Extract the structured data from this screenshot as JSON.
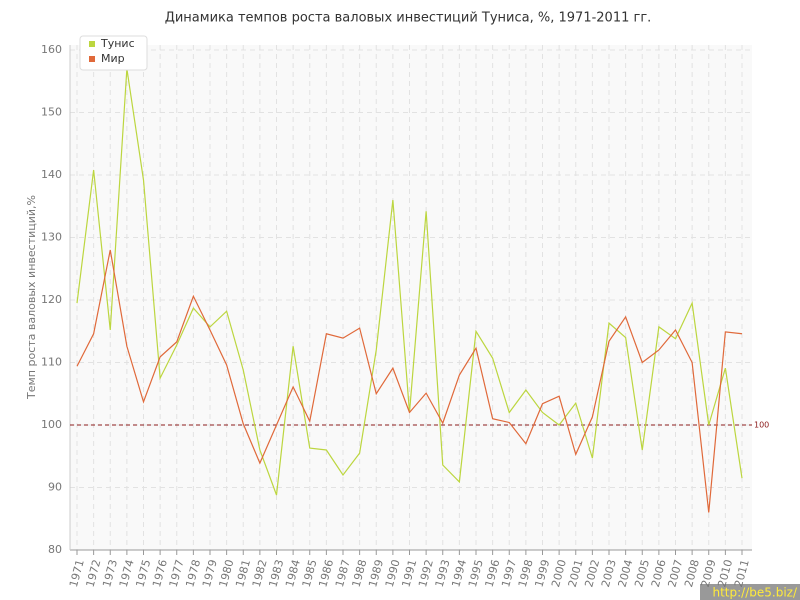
{
  "chart_data": {
    "type": "line",
    "title": "Динамика темпов роста валовых инвестиций Туниса, %, 1971-2011 гг.",
    "y_label": "Темп роста валовых инвестиций,%",
    "x": [
      1971,
      1972,
      1973,
      1974,
      1975,
      1976,
      1977,
      1978,
      1979,
      1980,
      1981,
      1982,
      1983,
      1984,
      1985,
      1986,
      1987,
      1988,
      1989,
      1990,
      1991,
      1992,
      1993,
      1994,
      1995,
      1996,
      1997,
      1998,
      1999,
      2000,
      2001,
      2002,
      2003,
      2004,
      2005,
      2006,
      2007,
      2008,
      2009,
      2010,
      2011
    ],
    "xlim": [
      1971,
      2011
    ],
    "series": [
      {
        "name": "Тунис",
        "color": "#bcd63f",
        "values": [
          119.5,
          140.8,
          115.2,
          157,
          139.2,
          107.5,
          112.8,
          118.7,
          115.7,
          118.2,
          108.8,
          96,
          88.8,
          112.6,
          96.3,
          96,
          92,
          95.5,
          112,
          136,
          102,
          134.2,
          93.6,
          90.9,
          115,
          110.7,
          102,
          105.6,
          102,
          100,
          103.5,
          94.7,
          116.3,
          114,
          96,
          115.7,
          113.8,
          119.5,
          100,
          109.1,
          91.5
        ]
      },
      {
        "name": "Мир",
        "color": "#e0693a",
        "values": [
          109.4,
          114.6,
          128,
          112.6,
          103.7,
          110.9,
          113.3,
          120.6,
          115.2,
          109.6,
          100.2,
          93.9,
          100,
          106.1,
          100.6,
          114.6,
          113.9,
          115.5,
          105,
          109.1,
          102,
          105.1,
          100.3,
          108,
          112.3,
          101,
          100.4,
          97,
          103.4,
          104.6,
          95.3,
          101.3,
          113.4,
          117.3,
          110,
          112,
          115.2,
          110,
          86,
          114.9,
          114.6
        ]
      }
    ],
    "ylim": [
      80,
      160
    ],
    "yticks": [
      80,
      90,
      100,
      110,
      120,
      130,
      140,
      150,
      160
    ],
    "grid": true,
    "legend": "top-left",
    "reference_line": 100,
    "watermark": "http://be5.biz/"
  }
}
